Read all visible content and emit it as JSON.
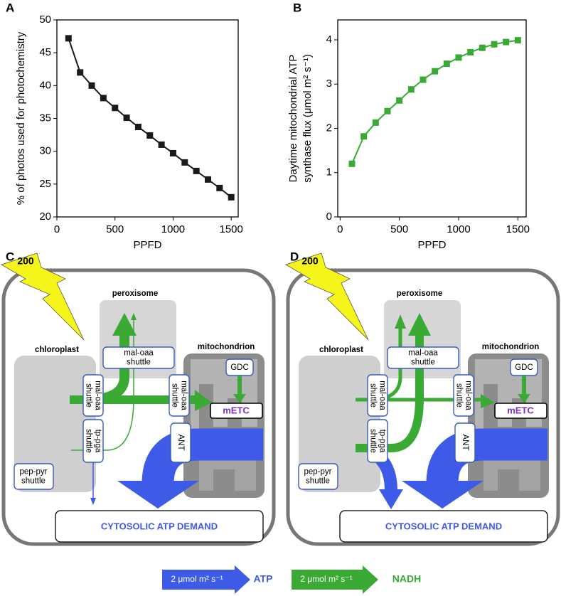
{
  "chart_data": [
    {
      "type": "line",
      "label": "A",
      "xlabel": "PPFD",
      "ylabel": [
        "% of photos used for photochemistry"
      ],
      "x": [
        100,
        200,
        300,
        400,
        500,
        600,
        700,
        800,
        900,
        1000,
        1100,
        1200,
        1300,
        1400,
        1500
      ],
      "values": [
        47.2,
        42,
        40,
        38.1,
        36.6,
        35.1,
        33.7,
        32.4,
        31.0,
        29.7,
        28.3,
        27.0,
        25.7,
        24.4,
        23.0
      ],
      "color": "#1a1a1a",
      "xlim": [
        0,
        1560
      ],
      "ylim": [
        20,
        50
      ],
      "xticks": [
        0,
        500,
        1000,
        1500
      ],
      "yticks": [
        20,
        25,
        30,
        35,
        40,
        45,
        50
      ]
    },
    {
      "type": "line",
      "label": "B",
      "xlabel": "PPFD",
      "ylabel": [
        "Daytime mitochondrial ATP",
        "synthase flux (μmol m² s⁻¹)"
      ],
      "x": [
        100,
        200,
        300,
        400,
        500,
        600,
        700,
        800,
        900,
        1000,
        1100,
        1200,
        1300,
        1400,
        1500
      ],
      "values": [
        1.2,
        1.82,
        2.13,
        2.39,
        2.63,
        2.88,
        3.1,
        3.29,
        3.46,
        3.6,
        3.72,
        3.82,
        3.9,
        3.95,
        3.99
      ],
      "color": "#3aaa35",
      "xlim": [
        -20,
        1570
      ],
      "ylim": [
        0,
        4.45
      ],
      "xticks": [
        0,
        500,
        1000,
        1500
      ],
      "yticks": [
        0,
        1,
        2,
        3,
        4
      ]
    }
  ],
  "panels": [
    {
      "label": "C",
      "flash": "200",
      "peroxisome": "peroxisome",
      "chloroplast": "chloroplast",
      "mitochondrion": "mitochondrion",
      "mal_oaa_top": [
        "mal-oaa",
        "shuttle"
      ],
      "mal_oaa_chloro": [
        "mal-oaa",
        "shuttle"
      ],
      "mal_oaa_mito": [
        "mal-oaa",
        "shuttle"
      ],
      "gdc": "GDC",
      "metc": "mETC",
      "ant": "ANT",
      "tp_pga": [
        "tp-pga",
        "shuttle"
      ],
      "pep_pyr": [
        "pep-pyr",
        "shuttle"
      ],
      "demand": "CYTOSOLIC ATP DEMAND"
    },
    {
      "label": "D",
      "flash": "200",
      "peroxisome": "peroxisome",
      "chloroplast": "chloroplast",
      "mitochondrion": "mitochondrion",
      "mal_oaa_top": [
        "mal-oaa",
        "shuttle"
      ],
      "mal_oaa_chloro": [
        "mal-oaa",
        "shuttle"
      ],
      "mal_oaa_mito": [
        "mal-oaa",
        "shuttle"
      ],
      "gdc": "GDC",
      "metc": "mETC",
      "ant": "ANT",
      "tp_pga": [
        "tp-pga",
        "shuttle"
      ],
      "pep_pyr": [
        "pep-pyr",
        "shuttle"
      ],
      "demand": "CYTOSOLIC ATP DEMAND"
    }
  ],
  "legend": {
    "atp_scale": "2 μmol m² s⁻¹",
    "atp": "ATP",
    "nadh_scale": "2 μmol m² s⁻¹",
    "nadh": "NADH"
  }
}
